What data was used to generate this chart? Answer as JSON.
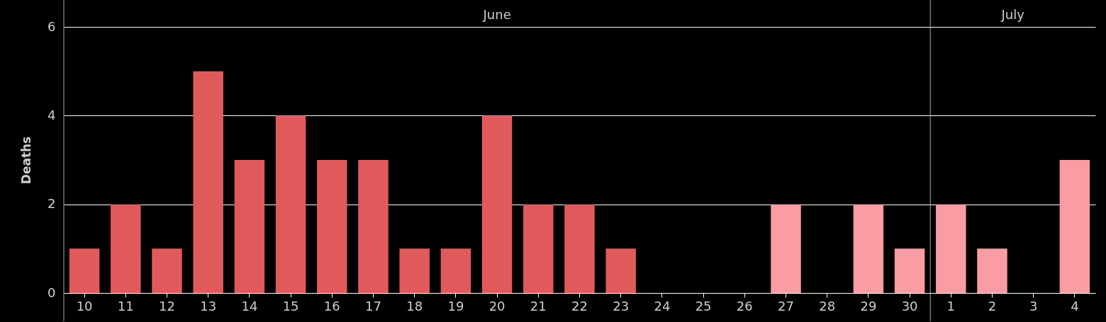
{
  "chart_data": {
    "type": "bar",
    "ylabel": "Deaths",
    "categories": [
      "10",
      "11",
      "12",
      "13",
      "14",
      "15",
      "16",
      "17",
      "18",
      "19",
      "20",
      "21",
      "22",
      "23",
      "24",
      "25",
      "26",
      "27",
      "28",
      "29",
      "30",
      "1",
      "2",
      "3",
      "4"
    ],
    "values": [
      1,
      2,
      1,
      5,
      3,
      4,
      3,
      3,
      1,
      1,
      4,
      2,
      2,
      1,
      0,
      0,
      0,
      2,
      0,
      2,
      1,
      2,
      1,
      0,
      3
    ],
    "colors": [
      "#e05a5c",
      "#e05a5c",
      "#e05a5c",
      "#e05a5c",
      "#e05a5c",
      "#e05a5c",
      "#e05a5c",
      "#e05a5c",
      "#e05a5c",
      "#e05a5c",
      "#e05a5c",
      "#e05a5c",
      "#e05a5c",
      "#e05a5c",
      "#e05a5c",
      "#e05a5c",
      "#e05a5c",
      "#f99ca3",
      "#f99ca3",
      "#f99ca3",
      "#f99ca3",
      "#f99ca3",
      "#f99ca3",
      "#f99ca3",
      "#f99ca3"
    ],
    "annotations": [
      "June",
      "July"
    ],
    "ref_lines": [
      {
        "axis": "x",
        "value": "1",
        "color": "#aaaaaa"
      }
    ],
    "ylim": [
      0,
      6
    ],
    "yticks": [
      0,
      2,
      4,
      6
    ],
    "grid": "y"
  }
}
